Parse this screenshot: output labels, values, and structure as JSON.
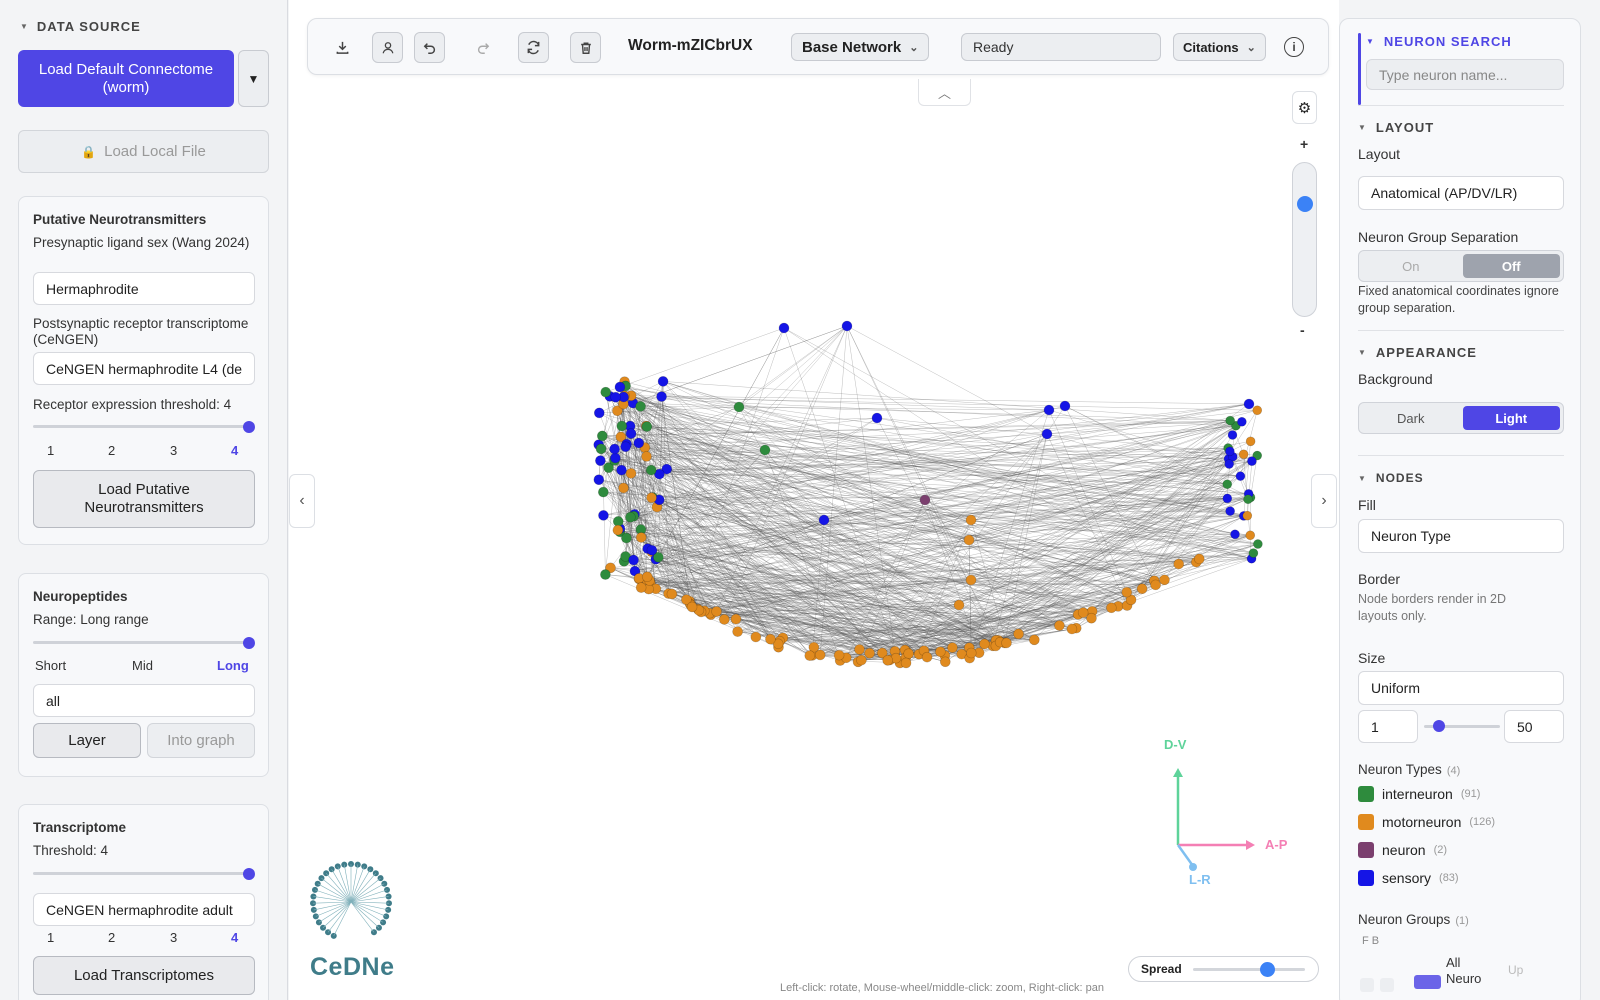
{
  "left": {
    "data_source": "DATA SOURCE",
    "load_default": "Load Default Connectome (worm)",
    "load_local": "Load Local File",
    "putative": {
      "title": "Putative Neurotransmitters",
      "ligand_label": "Presynaptic ligand sex (Wang 2024)",
      "ligand_value": "Hermaphrodite",
      "receptor_label": "Postsynaptic receptor transcriptome (CeNGEN)",
      "receptor_value": "CeNGEN hermaphrodite L4 (de",
      "threshold_label": "Receptor expression threshold: 4",
      "ticks": [
        "1",
        "2",
        "3",
        "4"
      ],
      "button": "Load Putative Neurotransmitters"
    },
    "neuropeptides": {
      "title": "Neuropeptides",
      "range_label": "Range: Long range",
      "ticks": [
        "Short",
        "Mid",
        "Long"
      ],
      "input_value": "all",
      "layer": "Layer",
      "into_graph": "Into graph"
    },
    "transcriptome": {
      "title": "Transcriptome",
      "threshold_label": "Threshold: 4",
      "input_value": "CeNGEN hermaphrodite adult",
      "ticks": [
        "1",
        "2",
        "3",
        "4"
      ],
      "button": "Load Transcriptomes"
    }
  },
  "toolbar": {
    "title": "Worm-mZICbrUX",
    "network": "Base Network",
    "status": "Ready",
    "citations": "Citations"
  },
  "canvas": {
    "zoom_plus": "+",
    "zoom_minus": "-",
    "spread": "Spread",
    "hint": "Left-click: rotate, Mouse-wheel/middle-click: zoom, Right-click: pan",
    "axis_dv": "D-V",
    "axis_ap": "A-P",
    "axis_lr": "L-R",
    "logo_text": "CeDNe",
    "zoom_level": 0.78,
    "spread_level": 0.66,
    "colors": {
      "interneuron": "#2e8b3d",
      "motorneuron": "#e08a1e",
      "neuron": "#7b3f6e",
      "sensory": "#1515e6"
    }
  },
  "right": {
    "search_title": "NEURON SEARCH",
    "search_placeholder": "Type neuron name...",
    "layout_title": "LAYOUT",
    "layout_label": "Layout",
    "layout_value": "Anatomical (AP/DV/LR)",
    "sep_label": "Neuron Group Separation",
    "sep_on": "On",
    "sep_off": "Off",
    "sep_note": "Fixed anatomical coordinates ignore group separation.",
    "appearance_title": "APPEARANCE",
    "background_label": "Background",
    "bg_dark": "Dark",
    "bg_light": "Light",
    "nodes_title": "NODES",
    "fill_label": "Fill",
    "fill_value": "Neuron Type",
    "border_label": "Border",
    "border_note": "Node borders render in 2D layouts only.",
    "size_label": "Size",
    "size_value": "Uniform",
    "size_min": "1",
    "size_max": "50",
    "types_label": "Neuron Types",
    "types_count": "(4)",
    "types": [
      {
        "name": "interneuron",
        "count": "(91)",
        "color": "#2e8b3d"
      },
      {
        "name": "motorneuron",
        "count": "(126)",
        "color": "#e08a1e"
      },
      {
        "name": "neuron",
        "count": "(2)",
        "color": "#7b3f6e"
      },
      {
        "name": "sensory",
        "count": "(83)",
        "color": "#1515e6"
      }
    ],
    "groups_label": "Neuron Groups",
    "groups_count": "(1)",
    "groups_cols": "F  B",
    "group_all": "All Neuro",
    "group_up": "Up"
  }
}
